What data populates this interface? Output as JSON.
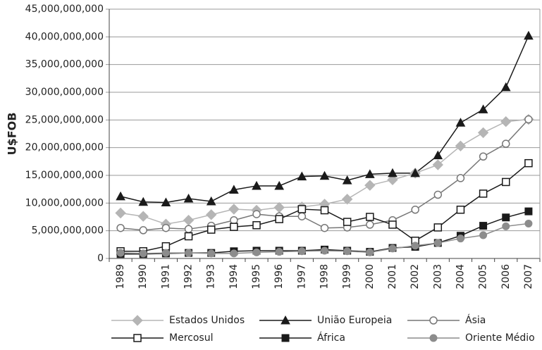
{
  "chart_data": {
    "type": "line",
    "y_label": "U$FOB",
    "categories": [
      "1989",
      "1990",
      "1991",
      "1992",
      "1993",
      "1994",
      "1995",
      "1996",
      "1997",
      "1998",
      "1999",
      "2000",
      "2001",
      "2002",
      "2003",
      "2004",
      "2005",
      "2006",
      "2007"
    ],
    "ylim": [
      0,
      45000000000
    ],
    "yticks": [
      0,
      {
        "value": 5000000000,
        "label": "5,000,000,000"
      },
      {
        "value": 10000000000,
        "label": "10,000,000,000"
      },
      {
        "value": 15000000000,
        "label": "15,000,000,000"
      },
      {
        "value": 20000000000,
        "label": "20,000,000,000"
      },
      {
        "value": 25000000000,
        "label": "25,000,000,000"
      },
      {
        "value": 30000000000,
        "label": "30,000,000,000"
      },
      {
        "value": 35000000000,
        "label": "35,000,000,000"
      },
      {
        "value": 40000000000,
        "label": "40,000,000,000"
      },
      {
        "value": 45000000000,
        "label": "45,000,000,000"
      }
    ],
    "series": [
      {
        "name": "Estados Unidos",
        "color": "#b5b5b5",
        "marker": "diamond",
        "values": [
          8200000000,
          7600000000,
          6200000000,
          6900000000,
          7900000000,
          8900000000,
          8700000000,
          9200000000,
          9300000000,
          9800000000,
          10700000000,
          13200000000,
          14200000000,
          15400000000,
          16900000000,
          20300000000,
          22700000000,
          24700000000,
          25100000000
        ]
      },
      {
        "name": "União Europeia",
        "color": "#1a1a1a",
        "marker": "triangle",
        "values": [
          11200000000,
          10200000000,
          10100000000,
          10800000000,
          10300000000,
          12400000000,
          13100000000,
          13100000000,
          14800000000,
          14900000000,
          14100000000,
          15200000000,
          15400000000,
          15400000000,
          18600000000,
          24500000000,
          26900000000,
          30900000000,
          40200000000
        ]
      },
      {
        "name": "Ásia",
        "color": "#777777",
        "marker": "circle-open",
        "values": [
          5500000000,
          5100000000,
          5500000000,
          5300000000,
          5900000000,
          6900000000,
          8000000000,
          7600000000,
          7600000000,
          5500000000,
          5600000000,
          6100000000,
          6900000000,
          8800000000,
          11500000000,
          14500000000,
          18400000000,
          20700000000,
          25100000000
        ]
      },
      {
        "name": "Mercosul",
        "color": "#1a1a1a",
        "marker": "square-open",
        "values": [
          1300000000,
          1300000000,
          2200000000,
          4000000000,
          5200000000,
          5700000000,
          6000000000,
          7100000000,
          8900000000,
          8700000000,
          6600000000,
          7500000000,
          6100000000,
          3200000000,
          5600000000,
          8800000000,
          11700000000,
          13800000000,
          17200000000
        ]
      },
      {
        "name": "África",
        "color": "#1a1a1a",
        "marker": "square",
        "values": [
          800000000,
          800000000,
          900000000,
          1000000000,
          1000000000,
          1300000000,
          1400000000,
          1400000000,
          1400000000,
          1600000000,
          1400000000,
          1200000000,
          1900000000,
          2100000000,
          2800000000,
          4100000000,
          5900000000,
          7400000000,
          8500000000
        ]
      },
      {
        "name": "Oriente Médio",
        "color": "#8c8c8c",
        "marker": "circle",
        "values": [
          1000000000,
          900000000,
          1000000000,
          1000000000,
          900000000,
          900000000,
          1100000000,
          1200000000,
          1300000000,
          1400000000,
          1300000000,
          1100000000,
          1800000000,
          2300000000,
          2800000000,
          3600000000,
          4200000000,
          5800000000,
          6300000000
        ]
      }
    ]
  }
}
